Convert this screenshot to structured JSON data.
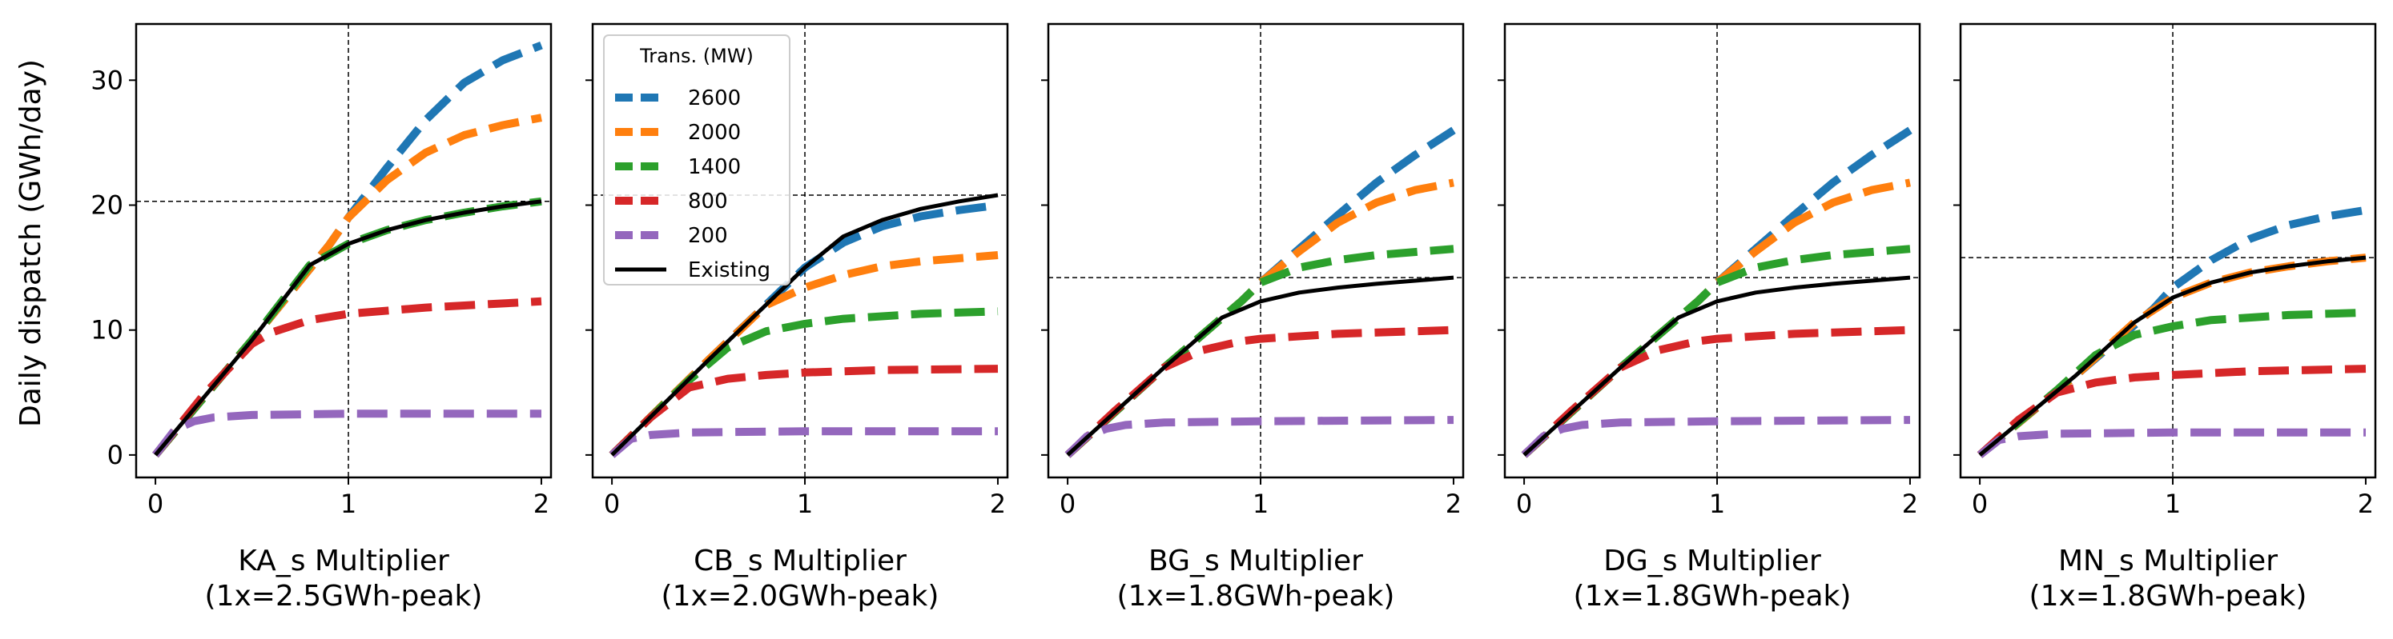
{
  "chart_data": {
    "type": "line",
    "ylabel": "Daily dispatch (GWh/day)",
    "ylim": [
      -1.8,
      34.5
    ],
    "yticks": [
      0,
      10,
      20,
      30
    ],
    "xlim": [
      -0.1,
      2.05
    ],
    "xticks": [
      0,
      1,
      2
    ],
    "grid": false,
    "legend": {
      "title": "Trans. (MW)",
      "placement": "top-left of second panel",
      "entries": [
        "2600",
        "2000",
        "1400",
        "800",
        "200",
        "Existing"
      ]
    },
    "series_styles": [
      {
        "name": "2600",
        "color": "#1f77b4",
        "dash": true
      },
      {
        "name": "2000",
        "color": "#ff7f0e",
        "dash": true
      },
      {
        "name": "1400",
        "color": "#2ca02c",
        "dash": true
      },
      {
        "name": "800",
        "color": "#d62728",
        "dash": true
      },
      {
        "name": "200",
        "color": "#9467bd",
        "dash": true
      },
      {
        "name": "Existing",
        "color": "#000000",
        "dash": false
      }
    ],
    "panels": [
      {
        "xlabel_line1": "KA_s Multiplier",
        "xlabel_line2": "(1x=2.5GWh-peak)",
        "ref_y": 20.3,
        "series": [
          {
            "name": "2600",
            "x": [
              0,
              0.5,
              0.9,
              1.0,
              1.2,
              1.4,
              1.6,
              1.8,
              2.0
            ],
            "y": [
              0,
              9.2,
              16.8,
              19.0,
              23.0,
              26.8,
              29.8,
              31.6,
              32.8
            ]
          },
          {
            "name": "2000",
            "x": [
              0,
              0.5,
              0.9,
              1.0,
              1.2,
              1.4,
              1.6,
              1.8,
              2.0
            ],
            "y": [
              0,
              9.2,
              16.8,
              19.0,
              22.0,
              24.2,
              25.6,
              26.4,
              27.0
            ]
          },
          {
            "name": "1400",
            "x": [
              0,
              0.5,
              0.8,
              1.0,
              1.2,
              1.4,
              1.6,
              1.8,
              2.0
            ],
            "y": [
              0,
              9.2,
              15.2,
              16.9,
              18.0,
              18.8,
              19.4,
              19.9,
              20.3
            ]
          },
          {
            "name": "800",
            "x": [
              0,
              0.25,
              0.5,
              0.6,
              0.8,
              1.0,
              1.4,
              2.0
            ],
            "y": [
              0,
              4.8,
              8.9,
              9.8,
              10.8,
              11.3,
              11.8,
              12.3
            ]
          },
          {
            "name": "200",
            "x": [
              0,
              0.1,
              0.2,
              0.3,
              0.5,
              1.0,
              2.0
            ],
            "y": [
              0,
              2.0,
              2.7,
              3.0,
              3.2,
              3.3,
              3.3
            ]
          },
          {
            "name": "Existing",
            "x": [
              0,
              0.5,
              0.8,
              1.0,
              1.2,
              1.4,
              1.6,
              1.8,
              2.0
            ],
            "y": [
              0,
              9.2,
              15.2,
              16.9,
              18.0,
              18.8,
              19.4,
              19.9,
              20.3
            ]
          }
        ]
      },
      {
        "xlabel_line1": "CB_s Multiplier",
        "xlabel_line2": "(1x=2.0GWh-peak)",
        "ref_y": 20.8,
        "series": [
          {
            "name": "2600",
            "x": [
              0,
              0.5,
              1.0,
              1.2,
              1.4,
              1.6,
              1.8,
              2.0
            ],
            "y": [
              0,
              7.6,
              15.0,
              17.0,
              18.3,
              19.1,
              19.6,
              20.0
            ]
          },
          {
            "name": "2000",
            "x": [
              0,
              0.5,
              0.8,
              1.0,
              1.2,
              1.4,
              1.6,
              2.0
            ],
            "y": [
              0,
              7.6,
              12.0,
              13.4,
              14.4,
              15.1,
              15.5,
              16.0
            ]
          },
          {
            "name": "1400",
            "x": [
              0,
              0.4,
              0.6,
              0.8,
              1.0,
              1.2,
              1.6,
              2.0
            ],
            "y": [
              0,
              6.0,
              8.6,
              9.9,
              10.5,
              10.9,
              11.3,
              11.5
            ]
          },
          {
            "name": "800",
            "x": [
              0,
              0.2,
              0.4,
              0.6,
              0.8,
              1.0,
              1.4,
              2.0
            ],
            "y": [
              0,
              3.0,
              5.4,
              6.1,
              6.4,
              6.6,
              6.8,
              6.9
            ]
          },
          {
            "name": "200",
            "x": [
              0,
              0.1,
              0.2,
              0.4,
              1.0,
              2.0
            ],
            "y": [
              0,
              1.3,
              1.6,
              1.8,
              1.9,
              1.9
            ]
          },
          {
            "name": "Existing",
            "x": [
              0,
              0.5,
              1.0,
              1.2,
              1.4,
              1.6,
              1.8,
              2.0
            ],
            "y": [
              0,
              7.6,
              15.0,
              17.5,
              18.8,
              19.7,
              20.3,
              20.8
            ]
          }
        ]
      },
      {
        "xlabel_line1": "BG_s Multiplier",
        "xlabel_line2": "(1x=1.8GWh-peak)",
        "ref_y": 14.2,
        "series": [
          {
            "name": "2600",
            "x": [
              0,
              0.5,
              0.9,
              1.0,
              1.2,
              1.4,
              1.6,
              1.8,
              2.0
            ],
            "y": [
              0,
              7.0,
              12.3,
              13.8,
              16.5,
              19.2,
              21.8,
              24.0,
              26.0
            ]
          },
          {
            "name": "2000",
            "x": [
              0,
              0.5,
              0.9,
              1.0,
              1.2,
              1.4,
              1.6,
              1.8,
              2.0
            ],
            "y": [
              0,
              7.0,
              12.3,
              13.8,
              16.3,
              18.6,
              20.2,
              21.2,
              21.8
            ]
          },
          {
            "name": "1400",
            "x": [
              0,
              0.5,
              0.9,
              1.0,
              1.2,
              1.4,
              1.6,
              2.0
            ],
            "y": [
              0,
              7.0,
              12.3,
              13.8,
              15.0,
              15.6,
              16.0,
              16.5
            ]
          },
          {
            "name": "800",
            "x": [
              0,
              0.25,
              0.5,
              0.7,
              0.9,
              1.0,
              1.4,
              2.0
            ],
            "y": [
              0,
              3.6,
              7.0,
              8.4,
              9.1,
              9.3,
              9.7,
              10.0
            ]
          },
          {
            "name": "200",
            "x": [
              0,
              0.1,
              0.2,
              0.3,
              0.5,
              1.0,
              2.0
            ],
            "y": [
              0,
              1.5,
              2.1,
              2.4,
              2.6,
              2.7,
              2.8
            ]
          },
          {
            "name": "Existing",
            "x": [
              0,
              0.5,
              0.8,
              1.0,
              1.2,
              1.4,
              1.6,
              1.8,
              2.0
            ],
            "y": [
              0,
              7.0,
              11.0,
              12.3,
              13.0,
              13.4,
              13.7,
              13.95,
              14.2
            ]
          }
        ]
      },
      {
        "xlabel_line1": "DG_s Multiplier",
        "xlabel_line2": "(1x=1.8GWh-peak)",
        "ref_y": 14.2,
        "series": [
          {
            "name": "2600",
            "x": [
              0,
              0.5,
              0.9,
              1.0,
              1.2,
              1.4,
              1.6,
              1.8,
              2.0
            ],
            "y": [
              0,
              7.0,
              12.3,
              13.8,
              16.5,
              19.2,
              21.8,
              24.0,
              26.0
            ]
          },
          {
            "name": "2000",
            "x": [
              0,
              0.5,
              0.9,
              1.0,
              1.2,
              1.4,
              1.6,
              1.8,
              2.0
            ],
            "y": [
              0,
              7.0,
              12.3,
              13.8,
              16.3,
              18.6,
              20.2,
              21.2,
              21.8
            ]
          },
          {
            "name": "1400",
            "x": [
              0,
              0.5,
              0.9,
              1.0,
              1.2,
              1.4,
              1.6,
              2.0
            ],
            "y": [
              0,
              7.0,
              12.3,
              13.8,
              15.0,
              15.6,
              16.0,
              16.5
            ]
          },
          {
            "name": "800",
            "x": [
              0,
              0.25,
              0.5,
              0.7,
              0.9,
              1.0,
              1.4,
              2.0
            ],
            "y": [
              0,
              3.6,
              7.0,
              8.4,
              9.1,
              9.3,
              9.7,
              10.0
            ]
          },
          {
            "name": "200",
            "x": [
              0,
              0.1,
              0.2,
              0.3,
              0.5,
              1.0,
              2.0
            ],
            "y": [
              0,
              1.5,
              2.1,
              2.4,
              2.6,
              2.7,
              2.8
            ]
          },
          {
            "name": "Existing",
            "x": [
              0,
              0.5,
              0.8,
              1.0,
              1.2,
              1.4,
              1.6,
              1.8,
              2.0
            ],
            "y": [
              0,
              7.0,
              11.0,
              12.3,
              13.0,
              13.4,
              13.7,
              13.95,
              14.2
            ]
          }
        ]
      },
      {
        "xlabel_line1": "MN_s Multiplier",
        "xlabel_line2": "(1x=1.8GWh-peak)",
        "ref_y": 15.8,
        "series": [
          {
            "name": "2600",
            "x": [
              0,
              0.5,
              0.9,
              1.0,
              1.2,
              1.4,
              1.6,
              1.8,
              2.0
            ],
            "y": [
              0,
              6.4,
              11.7,
              13.4,
              15.6,
              17.3,
              18.4,
              19.1,
              19.6
            ]
          },
          {
            "name": "2000",
            "x": [
              0,
              0.5,
              0.8,
              1.0,
              1.2,
              1.4,
              1.6,
              1.8,
              2.0
            ],
            "y": [
              0,
              6.4,
              10.6,
              12.6,
              13.8,
              14.6,
              15.1,
              15.5,
              15.8
            ]
          },
          {
            "name": "1400",
            "x": [
              0,
              0.4,
              0.6,
              0.8,
              1.0,
              1.2,
              1.6,
              2.0
            ],
            "y": [
              0,
              5.2,
              8.0,
              9.6,
              10.3,
              10.8,
              11.2,
              11.4
            ]
          },
          {
            "name": "800",
            "x": [
              0,
              0.2,
              0.4,
              0.6,
              0.8,
              1.0,
              1.4,
              2.0
            ],
            "y": [
              0,
              2.8,
              5.0,
              5.8,
              6.2,
              6.4,
              6.7,
              6.9
            ]
          },
          {
            "name": "200",
            "x": [
              0,
              0.1,
              0.2,
              0.4,
              1.0,
              2.0
            ],
            "y": [
              0,
              1.2,
              1.5,
              1.7,
              1.8,
              1.8
            ]
          },
          {
            "name": "Existing",
            "x": [
              0,
              0.5,
              0.8,
              1.0,
              1.2,
              1.4,
              1.6,
              1.8,
              2.0
            ],
            "y": [
              0,
              6.4,
              10.6,
              12.6,
              13.8,
              14.6,
              15.1,
              15.5,
              15.8
            ]
          }
        ]
      }
    ]
  }
}
